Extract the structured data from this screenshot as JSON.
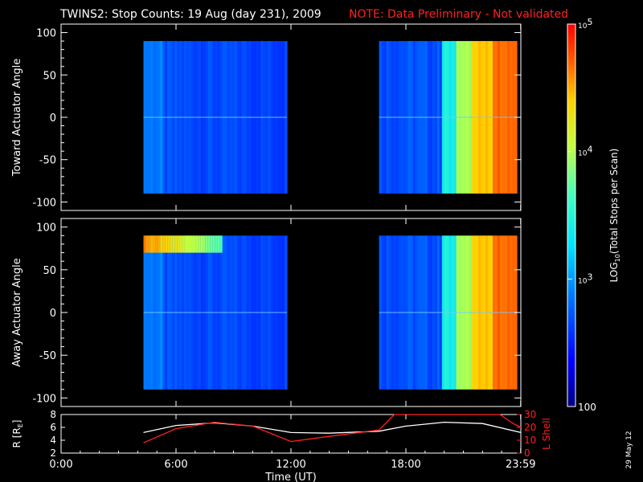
{
  "title": {
    "main": "TWINS2: Stop Counts: 19 Aug (day 231), 2009",
    "note": "NOTE: Data Preliminary - Not validated",
    "note_color": "#ff2020"
  },
  "stamp": "29 May 12",
  "chart_data": [
    {
      "type": "heatmap",
      "ylabel": "Toward Actuator Angle",
      "ylim": [
        -110,
        110
      ],
      "yticks": [
        100,
        50,
        0,
        -50,
        -100
      ],
      "angle_range": [
        -90,
        90
      ],
      "data_intervals_hours": [
        [
          4.3,
          12.0
        ],
        [
          16.6,
          24.0
        ]
      ],
      "xlim": [
        0,
        24
      ]
    },
    {
      "type": "heatmap",
      "ylabel": "Away Actuator Angle",
      "ylim": [
        -110,
        110
      ],
      "yticks": [
        100,
        50,
        0,
        -50,
        -100
      ],
      "angle_range": [
        -90,
        90
      ],
      "data_intervals_hours": [
        [
          4.3,
          12.0
        ],
        [
          16.6,
          24.0
        ]
      ],
      "xlim": [
        0,
        24
      ]
    },
    {
      "type": "line",
      "ylabel_left": "R [R",
      "ylabel_left_sub": "E",
      "ylabel_left_end": "]",
      "ylabel_right": "L Shell",
      "ylim_left": [
        2,
        8
      ],
      "yticks_left": [
        2,
        4,
        6,
        8
      ],
      "ylim_right": [
        0,
        30
      ],
      "yticks_right": [
        0,
        10,
        20,
        30
      ],
      "right_color": "#ff2020",
      "series": [
        {
          "axis": "left",
          "color": "#ffffff",
          "x": [
            4.3,
            6,
            8,
            10,
            12,
            14,
            16.6,
            18,
            20,
            22,
            24
          ],
          "y": [
            5.2,
            6.3,
            6.7,
            6.2,
            5.2,
            5.1,
            5.4,
            6.2,
            6.8,
            6.6,
            5.2
          ]
        },
        {
          "axis": "right",
          "color": "#ff2020",
          "x": [
            4.3,
            6,
            8,
            10,
            12,
            14,
            16.6,
            17.4,
            17.8,
            22.9,
            23.6,
            24
          ],
          "y": [
            8,
            19,
            24,
            21,
            9,
            13,
            18,
            30,
            30,
            30,
            23,
            20
          ]
        }
      ],
      "xlabel": "Time (UT)",
      "xticks": [
        0,
        6,
        12,
        18,
        23.99
      ],
      "xticklabels": [
        "0:00",
        "6:00",
        "12:00",
        "18:00",
        "23:59"
      ]
    }
  ],
  "colorbar": {
    "label_pre": "LOG",
    "label_sub": "10",
    "label_post": "(Total Stops per Scan)",
    "ticks": [
      {
        "log": 2,
        "label": "100"
      },
      {
        "log": 3,
        "base": "10",
        "exp": "3"
      },
      {
        "log": 4,
        "base": "10",
        "exp": "4"
      },
      {
        "log": 5,
        "base": "10",
        "exp": "5"
      }
    ]
  }
}
